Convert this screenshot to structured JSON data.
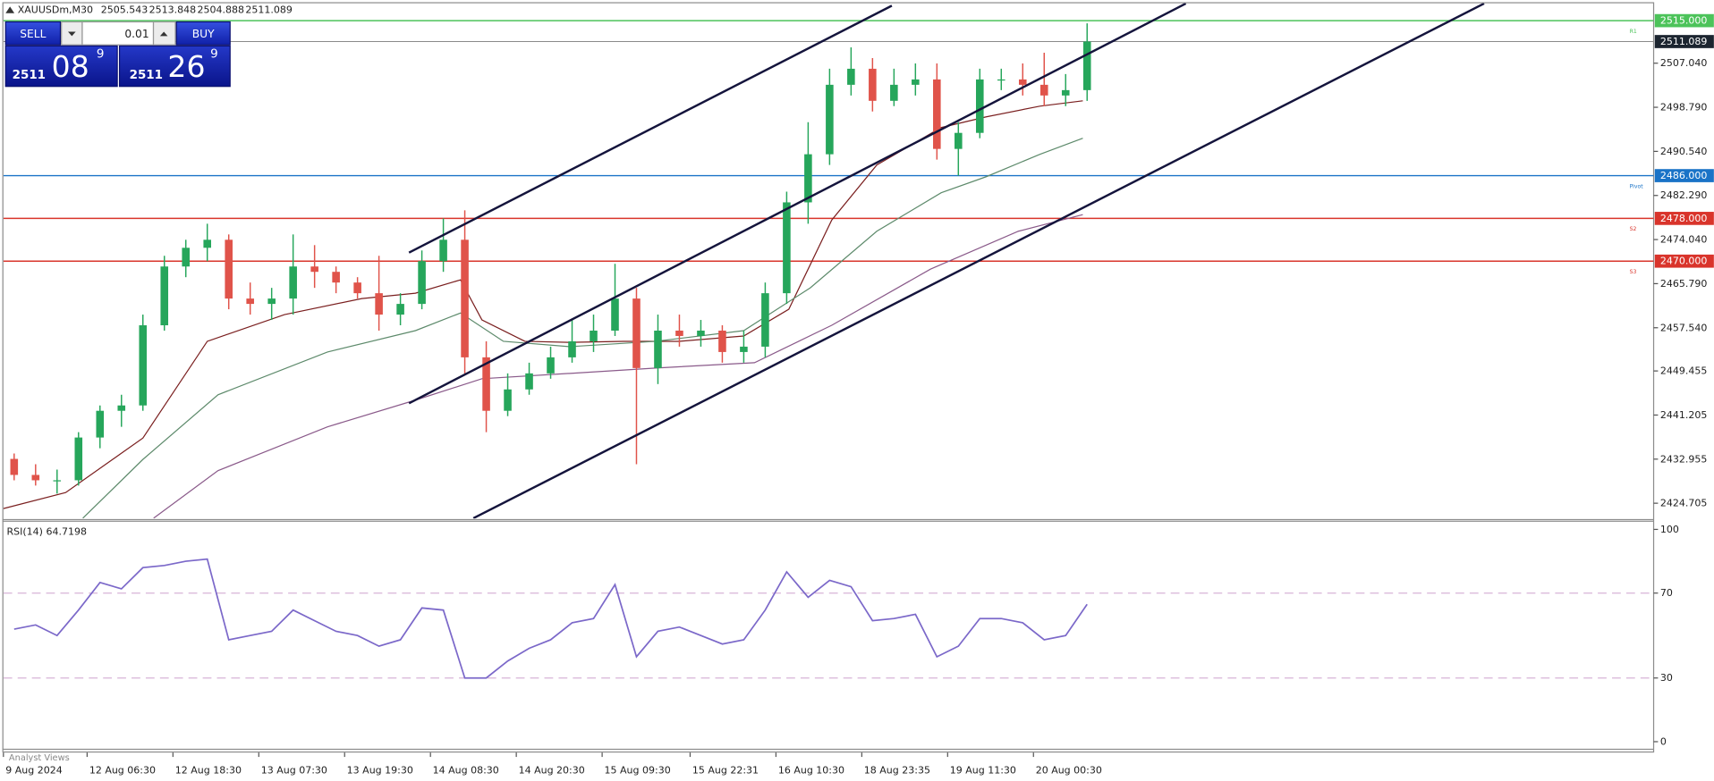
{
  "chart_data": [
    {
      "type": "candlestick",
      "title": "XAUUSDm,M30",
      "ohlc": [
        2505.543,
        2513.848,
        2504.888,
        2511.089
      ],
      "up_color": "#26a65b",
      "down_color": "#e0534a",
      "xlim": [
        -0.5,
        76.4
      ],
      "ylim": [
        2421.85,
        2518.25
      ],
      "xticks": [
        {
          "value": -0.5,
          "label": "9 Aug 2024"
        },
        {
          "value": 3.4,
          "label": "12 Aug 06:30"
        },
        {
          "value": 7.4,
          "label": "12 Aug 18:30"
        },
        {
          "value": 11.4,
          "label": "13 Aug 07:30"
        },
        {
          "value": 15.4,
          "label": "13 Aug 19:30"
        },
        {
          "value": 19.4,
          "label": "14 Aug 08:30"
        },
        {
          "value": 23.4,
          "label": "14 Aug 20:30"
        },
        {
          "value": 27.4,
          "label": "15 Aug 09:30"
        },
        {
          "value": 31.5,
          "label": "15 Aug 22:31"
        },
        {
          "value": 35.5,
          "label": "16 Aug 10:30"
        },
        {
          "value": 39.5,
          "label": "18 Aug 23:35"
        },
        {
          "value": 43.5,
          "label": "19 Aug 11:30"
        },
        {
          "value": 47.5,
          "label": "20 Aug 00:30"
        }
      ],
      "yticks": [
        {
          "value": 2507.04,
          "label": "2507.040"
        },
        {
          "value": 2498.79,
          "label": "2498.790"
        },
        {
          "value": 2490.54,
          "label": "2490.540"
        },
        {
          "value": 2482.29,
          "label": "2482.290"
        },
        {
          "value": 2474.04,
          "label": "2474.040"
        },
        {
          "value": 2465.79,
          "label": "2465.790"
        },
        {
          "value": 2457.54,
          "label": "2457.540"
        },
        2449.455,
        2441.205,
        2432.955,
        2424.705
      ],
      "candles": [
        {
          "open": 2433,
          "high": 2434,
          "low": 2429,
          "close": 2430
        },
        {
          "open": 2430,
          "high": 2432,
          "low": 2428,
          "close": 2429
        },
        {
          "open": 2429,
          "high": 2431,
          "low": 2426.5,
          "close": 2429
        },
        {
          "open": 2429,
          "high": 2438,
          "low": 2428,
          "close": 2437
        },
        {
          "open": 2437,
          "high": 2443,
          "low": 2435,
          "close": 2442
        },
        {
          "open": 2442,
          "high": 2445,
          "low": 2439,
          "close": 2443
        },
        {
          "open": 2443,
          "high": 2460,
          "low": 2442,
          "close": 2458
        },
        {
          "open": 2458,
          "high": 2471,
          "low": 2457,
          "close": 2469
        },
        {
          "open": 2469,
          "high": 2474,
          "low": 2467,
          "close": 2472.5
        },
        {
          "open": 2472.5,
          "high": 2477,
          "low": 2470,
          "close": 2474
        },
        {
          "open": 2474,
          "high": 2475,
          "low": 2461,
          "close": 2463
        },
        {
          "open": 2463,
          "high": 2466,
          "low": 2460,
          "close": 2462
        },
        {
          "open": 2462,
          "high": 2465,
          "low": 2459,
          "close": 2463
        },
        {
          "open": 2463,
          "high": 2475,
          "low": 2460,
          "close": 2469
        },
        {
          "open": 2469,
          "high": 2473,
          "low": 2465,
          "close": 2468
        },
        {
          "open": 2468,
          "high": 2469,
          "low": 2464,
          "close": 2466
        },
        {
          "open": 2466,
          "high": 2467,
          "low": 2463,
          "close": 2464
        },
        {
          "open": 2464,
          "high": 2471,
          "low": 2457,
          "close": 2460
        },
        {
          "open": 2460,
          "high": 2464,
          "low": 2458,
          "close": 2462
        },
        {
          "open": 2462,
          "high": 2472,
          "low": 2461,
          "close": 2470
        },
        {
          "open": 2470,
          "high": 2478,
          "low": 2468,
          "close": 2474
        },
        {
          "open": 2474,
          "high": 2479.5,
          "low": 2449,
          "close": 2452
        },
        {
          "open": 2452,
          "high": 2455,
          "low": 2438,
          "close": 2442
        },
        {
          "open": 2442,
          "high": 2449,
          "low": 2441,
          "close": 2446
        },
        {
          "open": 2446,
          "high": 2451,
          "low": 2445,
          "close": 2449
        },
        {
          "open": 2449,
          "high": 2454,
          "low": 2448,
          "close": 2452
        },
        {
          "open": 2452,
          "high": 2459,
          "low": 2451,
          "close": 2455
        },
        {
          "open": 2455,
          "high": 2460,
          "low": 2453,
          "close": 2457
        },
        {
          "open": 2457,
          "high": 2469.5,
          "low": 2456,
          "close": 2463
        },
        {
          "open": 2463,
          "high": 2465,
          "low": 2432,
          "close": 2450
        },
        {
          "open": 2450,
          "high": 2460,
          "low": 2447,
          "close": 2457
        },
        {
          "open": 2457,
          "high": 2460,
          "low": 2454,
          "close": 2456
        },
        {
          "open": 2456,
          "high": 2459,
          "low": 2454,
          "close": 2457
        },
        {
          "open": 2457,
          "high": 2458,
          "low": 2451,
          "close": 2453
        },
        {
          "open": 2453,
          "high": 2457,
          "low": 2451,
          "close": 2454
        },
        {
          "open": 2454,
          "high": 2466,
          "low": 2452,
          "close": 2464
        },
        {
          "open": 2464,
          "high": 2483,
          "low": 2462,
          "close": 2481
        },
        {
          "open": 2481,
          "high": 2496,
          "low": 2477,
          "close": 2490
        },
        {
          "open": 2490,
          "high": 2506,
          "low": 2488,
          "close": 2503
        },
        {
          "open": 2503,
          "high": 2510,
          "low": 2501,
          "close": 2506
        },
        {
          "open": 2506,
          "high": 2508,
          "low": 2498,
          "close": 2500
        },
        {
          "open": 2500,
          "high": 2506,
          "low": 2499,
          "close": 2503
        },
        {
          "open": 2503,
          "high": 2507,
          "low": 2501,
          "close": 2504
        },
        {
          "open": 2504,
          "high": 2507,
          "low": 2489,
          "close": 2491
        },
        {
          "open": 2491,
          "high": 2496,
          "low": 2486,
          "close": 2494
        },
        {
          "open": 2494,
          "high": 2506,
          "low": 2493,
          "close": 2504
        },
        {
          "open": 2504,
          "high": 2506,
          "low": 2502,
          "close": 2504
        },
        {
          "open": 2504,
          "high": 2507,
          "low": 2501,
          "close": 2503
        },
        {
          "open": 2503,
          "high": 2509,
          "low": 2499,
          "close": 2501
        },
        {
          "open": 2501,
          "high": 2505,
          "low": 2499,
          "close": 2502
        },
        {
          "open": 2502,
          "high": 2514.5,
          "low": 2500,
          "close": 2511.089
        }
      ],
      "series": [
        {
          "color": "#7a1f1f",
          "x": [
            -0.5,
            2.4,
            6.0,
            9.0,
            12.6,
            16.2,
            18.7,
            20.8,
            21.8,
            23.8,
            25.9,
            28.4,
            31.0,
            34.0,
            36.1,
            38.1,
            40.2,
            43.2,
            45.3,
            47.8,
            49.8
          ],
          "values": [
            2423.7,
            2426.7,
            2436.9,
            2455,
            2460,
            2463,
            2464,
            2466.5,
            2459,
            2455,
            2454.8,
            2455,
            2455,
            2456,
            2461,
            2477.7,
            2488,
            2495,
            2497,
            2499,
            2500
          ]
        },
        {
          "color": "#5d8a6b",
          "x": [
            3.2,
            6.0,
            9.5,
            14.6,
            18.7,
            20.8,
            22.8,
            25.9,
            29.9,
            34.0,
            37.1,
            40.2,
            43.2,
            45.3,
            47.8,
            49.8
          ],
          "values": [
            2421.9,
            2432.9,
            2445,
            2453,
            2457,
            2460.3,
            2455,
            2454,
            2455,
            2457,
            2465,
            2475.6,
            2482.8,
            2485.8,
            2490,
            2493
          ]
        },
        {
          "color": "#8a5a8a",
          "x": [
            6.5,
            9.5,
            14.6,
            18.7,
            21.8,
            25.9,
            29.9,
            34.5,
            38.1,
            42.7,
            46.8,
            49.8
          ],
          "values": [
            2421.9,
            2430.8,
            2439,
            2444,
            2448,
            2449,
            2450,
            2451,
            2458,
            2468.5,
            2475.6,
            2478.7
          ]
        }
      ],
      "trendline_color": "#14143c",
      "trendlines": [
        {
          "x": [
            18.4,
            40.9
          ],
          "values": [
            2471.6,
            2517.8
          ]
        },
        {
          "x": [
            18.4,
            54.6
          ],
          "values": [
            2443.4,
            2518.2
          ]
        },
        {
          "x": [
            21.4,
            68.5
          ],
          "values": [
            2421.9,
            2518.2
          ]
        }
      ],
      "levels": [
        {
          "name": "R1",
          "value": 2515,
          "label": "2515.000",
          "color": "#4cc35a"
        },
        {
          "name": "Pivot",
          "value": 2486,
          "label": "2486.000",
          "color": "#1a73c7"
        },
        {
          "name": "S2",
          "value": 2478,
          "label": "2478.000",
          "color": "#d9342b"
        },
        {
          "name": "S3",
          "value": 2470,
          "label": "2470.000",
          "color": "#d9342b"
        }
      ],
      "last": {
        "value": 2511.089,
        "color": "#1c2530"
      }
    },
    {
      "type": "line",
      "title": "RSI(14)",
      "current": 64.7198,
      "color": "#7b68c9",
      "ylim": [
        -4.1,
        103.6
      ],
      "yticks": [
        0,
        30,
        70,
        100
      ],
      "levels": [
        30,
        70
      ],
      "level_color": "#d8b4d8",
      "values": [
        53,
        55,
        50,
        62,
        75,
        72,
        82,
        83,
        85,
        86,
        48,
        50,
        52,
        62,
        57,
        52,
        50,
        45,
        48,
        63,
        62,
        30,
        30,
        38,
        44,
        48,
        56,
        58,
        74,
        40,
        52,
        54,
        50,
        46,
        48,
        62,
        80,
        68,
        76,
        73,
        57,
        58,
        60,
        40,
        45,
        58,
        58,
        56,
        48,
        50,
        64.7198
      ]
    }
  ],
  "trade_panel": {
    "sell": "SELL",
    "buy": "BUY",
    "lot": 0.01,
    "bid": [
      "2511",
      "08",
      "9"
    ],
    "ask": [
      "2511",
      "26",
      "9"
    ]
  },
  "footer_tab": "Analyst Views"
}
